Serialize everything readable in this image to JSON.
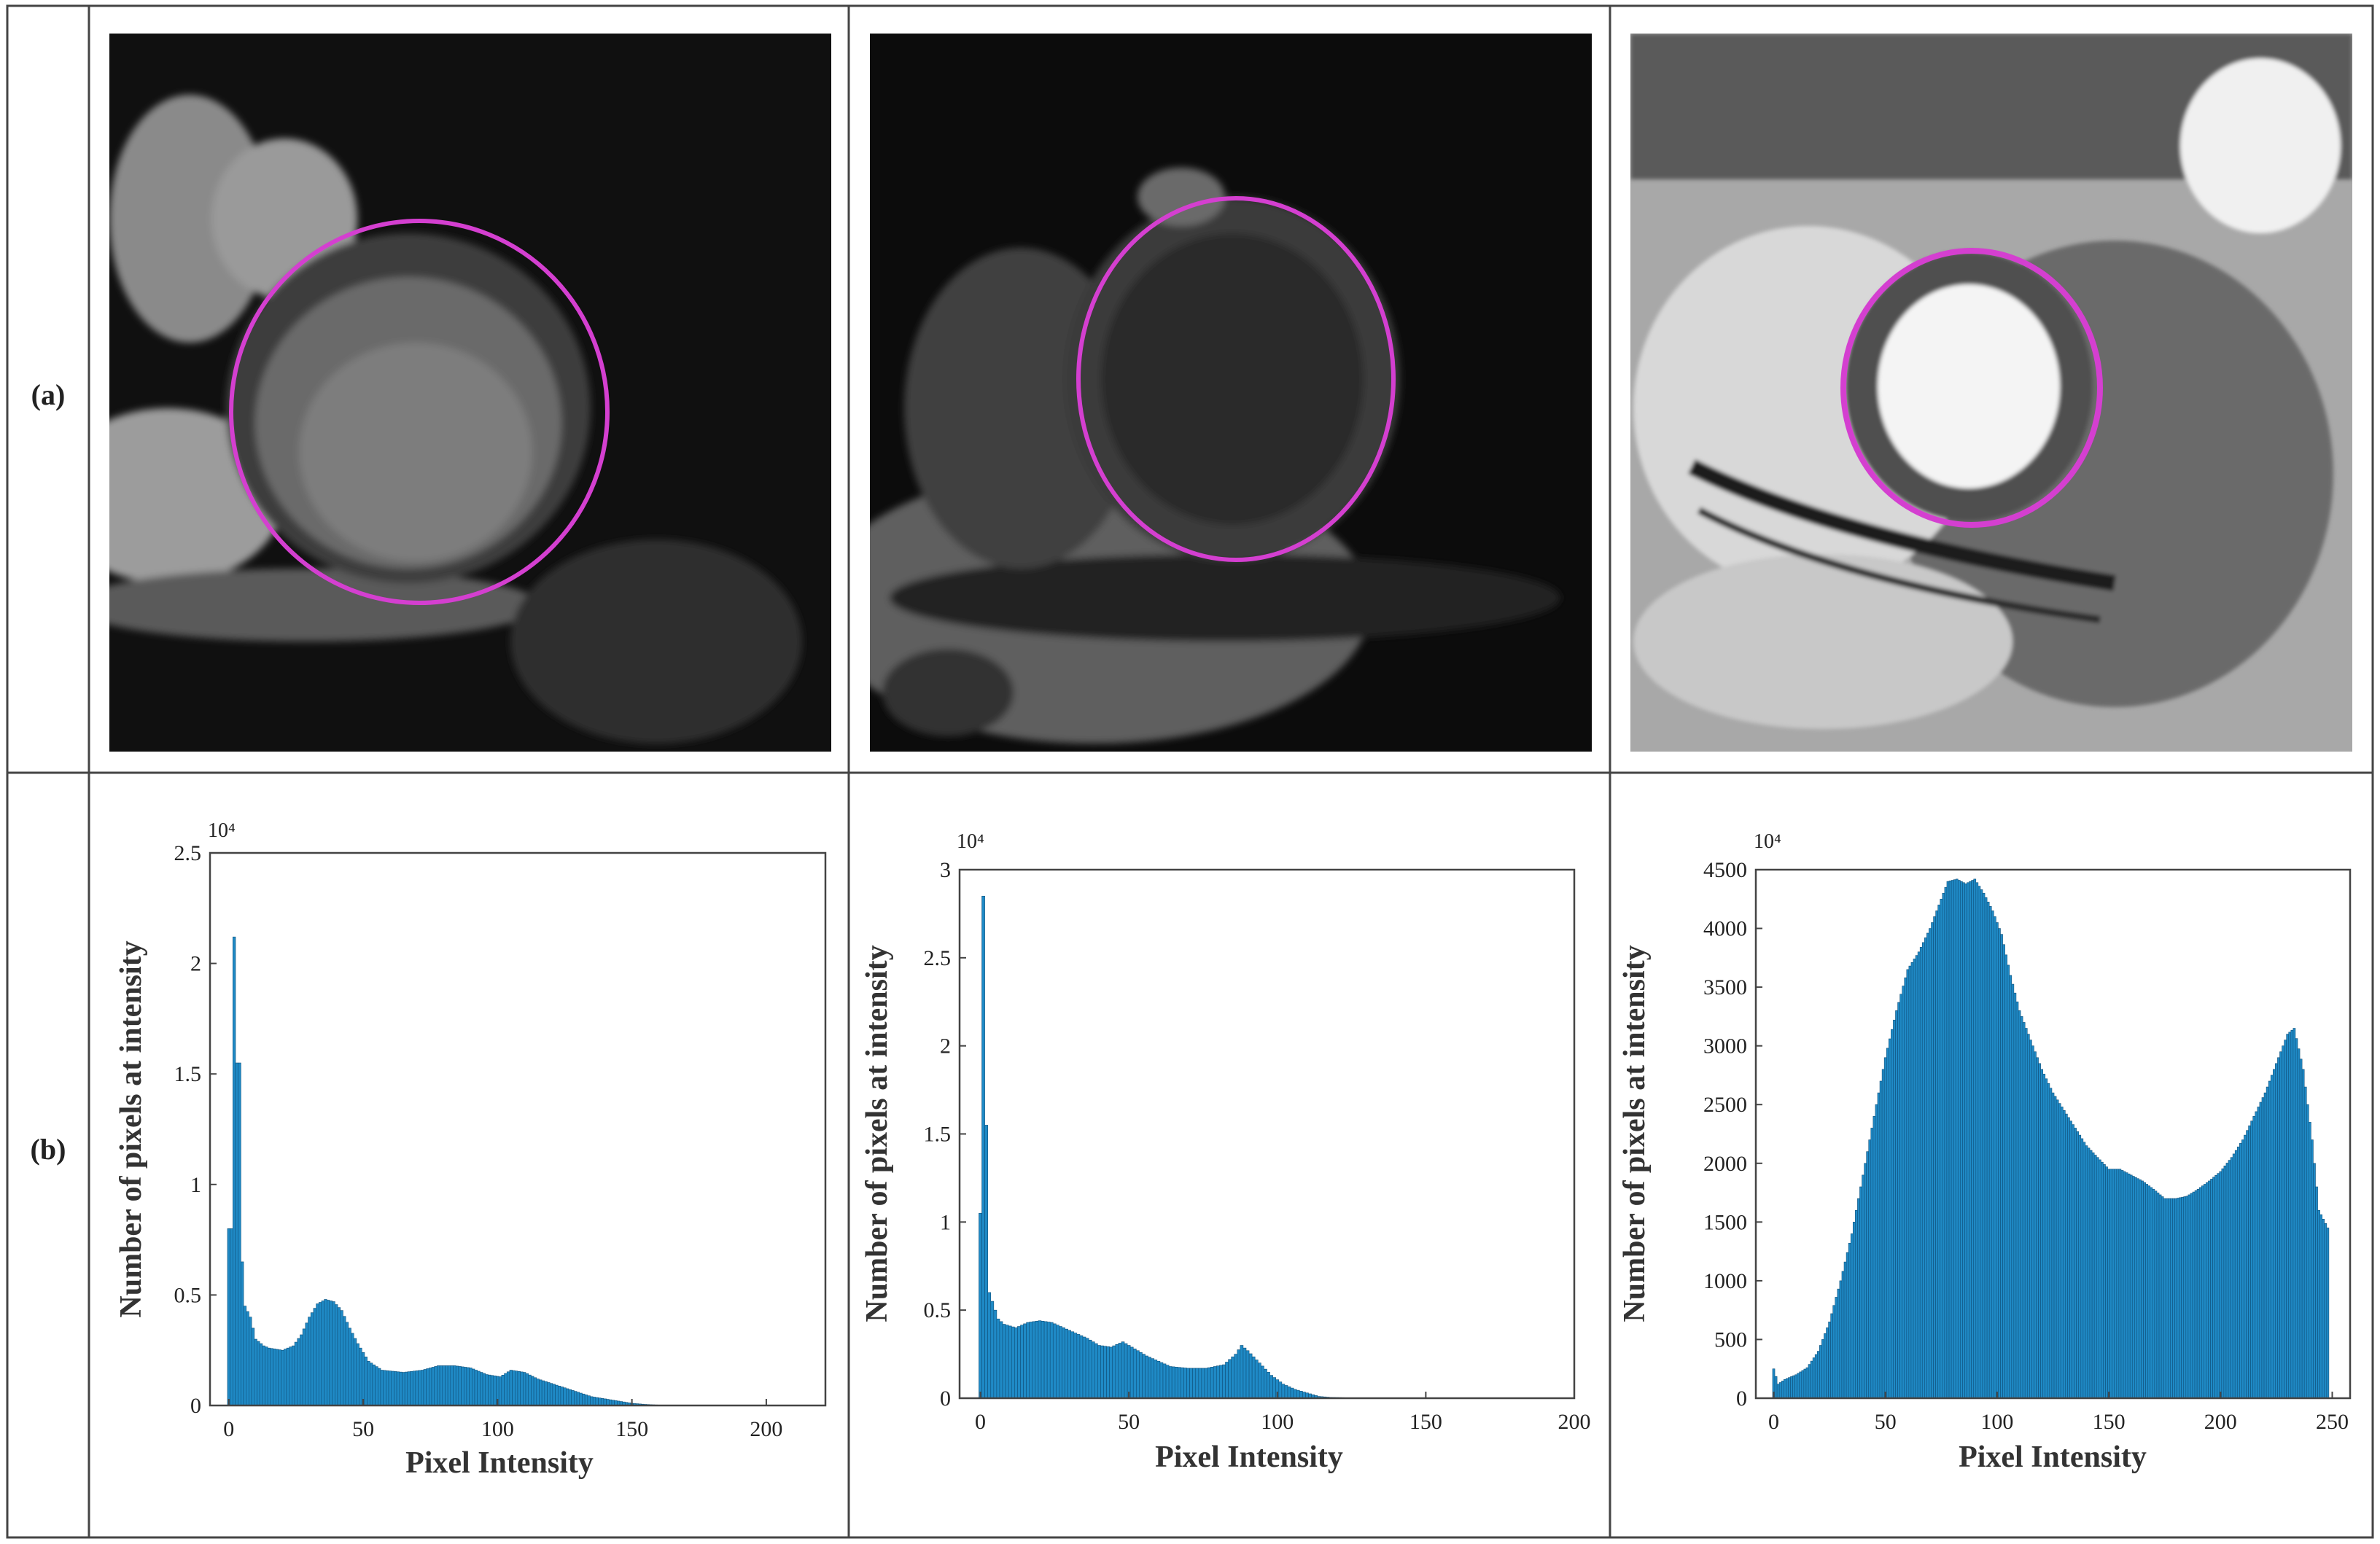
{
  "row_labels": {
    "a": "(a)",
    "b": "(b)"
  },
  "colors": {
    "bar_fill": "#1f8ac6",
    "bar_stroke": "#10507a",
    "contour": "#d43fd0",
    "grid_line": "#444444"
  },
  "images": [
    {
      "description_icon": "mri-short-axis-bright-blood"
    },
    {
      "description_icon": "mri-short-axis-dark"
    },
    {
      "description_icon": "mri-short-axis-high-contrast"
    }
  ],
  "chart_data": [
    {
      "type": "bar",
      "xlabel": "Pixel Intensity",
      "ylabel": "Number of pixels at intensity",
      "exponent_label": "10⁴",
      "xlim": [
        -7,
        222
      ],
      "ylim": [
        0,
        2.5
      ],
      "xticks": [
        0,
        50,
        100,
        150,
        200
      ],
      "yticks": [
        0,
        0.5,
        1,
        1.5,
        2,
        2.5
      ],
      "ytick_labels": [
        "0",
        "0.5",
        "1",
        "1.5",
        "2",
        "2.5"
      ],
      "anchors": [
        [
          0,
          0.8
        ],
        [
          1,
          0.8
        ],
        [
          2,
          2.12
        ],
        [
          3,
          1.55
        ],
        [
          4,
          1.55
        ],
        [
          5,
          0.65
        ],
        [
          6,
          0.45
        ],
        [
          8,
          0.4
        ],
        [
          10,
          0.3
        ],
        [
          13,
          0.27
        ],
        [
          15,
          0.26
        ],
        [
          20,
          0.25
        ],
        [
          24,
          0.27
        ],
        [
          27,
          0.32
        ],
        [
          30,
          0.4
        ],
        [
          33,
          0.46
        ],
        [
          36,
          0.48
        ],
        [
          39,
          0.47
        ],
        [
          42,
          0.43
        ],
        [
          45,
          0.35
        ],
        [
          48,
          0.28
        ],
        [
          52,
          0.2
        ],
        [
          57,
          0.16
        ],
        [
          65,
          0.15
        ],
        [
          72,
          0.16
        ],
        [
          78,
          0.18
        ],
        [
          84,
          0.18
        ],
        [
          90,
          0.17
        ],
        [
          96,
          0.14
        ],
        [
          101,
          0.13
        ],
        [
          105,
          0.16
        ],
        [
          110,
          0.15
        ],
        [
          115,
          0.12
        ],
        [
          120,
          0.1
        ],
        [
          125,
          0.08
        ],
        [
          130,
          0.06
        ],
        [
          135,
          0.04
        ],
        [
          140,
          0.03
        ],
        [
          145,
          0.02
        ],
        [
          150,
          0.01
        ],
        [
          155,
          0.005
        ],
        [
          160,
          0.002
        ],
        [
          200,
          0.001
        ],
        [
          212,
          0.0
        ]
      ]
    },
    {
      "type": "bar",
      "xlabel": "Pixel Intensity",
      "ylabel": "Number of pixels at intensity",
      "exponent_label": "10⁴",
      "xlim": [
        -7,
        200
      ],
      "ylim": [
        0,
        3
      ],
      "xticks": [
        0,
        50,
        100,
        150,
        200
      ],
      "yticks": [
        0,
        0.5,
        1,
        1.5,
        2,
        2.5,
        3
      ],
      "ytick_labels": [
        "0",
        "0.5",
        "1",
        "1.5",
        "2",
        "2.5",
        "3"
      ],
      "anchors": [
        [
          0,
          1.05
        ],
        [
          1,
          2.85
        ],
        [
          2,
          1.55
        ],
        [
          3,
          0.6
        ],
        [
          4,
          0.55
        ],
        [
          6,
          0.45
        ],
        [
          8,
          0.42
        ],
        [
          12,
          0.4
        ],
        [
          16,
          0.43
        ],
        [
          20,
          0.44
        ],
        [
          24,
          0.43
        ],
        [
          28,
          0.4
        ],
        [
          32,
          0.37
        ],
        [
          36,
          0.34
        ],
        [
          40,
          0.3
        ],
        [
          44,
          0.29
        ],
        [
          48,
          0.32
        ],
        [
          52,
          0.28
        ],
        [
          56,
          0.24
        ],
        [
          60,
          0.21
        ],
        [
          64,
          0.18
        ],
        [
          70,
          0.17
        ],
        [
          76,
          0.17
        ],
        [
          82,
          0.19
        ],
        [
          86,
          0.25
        ],
        [
          88,
          0.3
        ],
        [
          90,
          0.27
        ],
        [
          94,
          0.2
        ],
        [
          98,
          0.13
        ],
        [
          102,
          0.08
        ],
        [
          106,
          0.05
        ],
        [
          110,
          0.03
        ],
        [
          114,
          0.01
        ],
        [
          118,
          0.005
        ],
        [
          125,
          0.002
        ],
        [
          195,
          0.0
        ]
      ]
    },
    {
      "type": "bar",
      "xlabel": "Pixel Intensity",
      "ylabel": "Number of pixels at intensity",
      "exponent_label": "10⁴",
      "xlim": [
        -8,
        258
      ],
      "ylim": [
        0,
        4500
      ],
      "xticks": [
        0,
        50,
        100,
        150,
        200,
        250
      ],
      "yticks": [
        0,
        500,
        1000,
        1500,
        2000,
        2500,
        3000,
        3500,
        4000,
        4500
      ],
      "ytick_labels": [
        "0",
        "500",
        "1000",
        "1500",
        "2000",
        "2500",
        "3000",
        "3500",
        "4000",
        "4500"
      ],
      "anchors": [
        [
          0,
          250
        ],
        [
          2,
          120
        ],
        [
          5,
          160
        ],
        [
          10,
          200
        ],
        [
          15,
          260
        ],
        [
          20,
          400
        ],
        [
          25,
          650
        ],
        [
          30,
          1000
        ],
        [
          35,
          1400
        ],
        [
          40,
          1900
        ],
        [
          45,
          2400
        ],
        [
          50,
          2900
        ],
        [
          55,
          3300
        ],
        [
          60,
          3650
        ],
        [
          65,
          3800
        ],
        [
          70,
          4000
        ],
        [
          75,
          4250
        ],
        [
          78,
          4400
        ],
        [
          82,
          4420
        ],
        [
          86,
          4380
        ],
        [
          90,
          4420
        ],
        [
          94,
          4300
        ],
        [
          98,
          4150
        ],
        [
          102,
          3950
        ],
        [
          106,
          3600
        ],
        [
          110,
          3300
        ],
        [
          115,
          3050
        ],
        [
          120,
          2800
        ],
        [
          125,
          2600
        ],
        [
          130,
          2450
        ],
        [
          135,
          2300
        ],
        [
          140,
          2150
        ],
        [
          145,
          2050
        ],
        [
          150,
          1950
        ],
        [
          155,
          1950
        ],
        [
          160,
          1900
        ],
        [
          165,
          1850
        ],
        [
          170,
          1780
        ],
        [
          175,
          1700
        ],
        [
          180,
          1700
        ],
        [
          185,
          1720
        ],
        [
          190,
          1780
        ],
        [
          195,
          1850
        ],
        [
          200,
          1930
        ],
        [
          205,
          2050
        ],
        [
          210,
          2200
        ],
        [
          215,
          2400
        ],
        [
          220,
          2600
        ],
        [
          225,
          2850
        ],
        [
          230,
          3100
        ],
        [
          233,
          3150
        ],
        [
          237,
          2800
        ],
        [
          241,
          2200
        ],
        [
          244,
          1600
        ],
        [
          248,
          1450
        ]
      ]
    }
  ]
}
